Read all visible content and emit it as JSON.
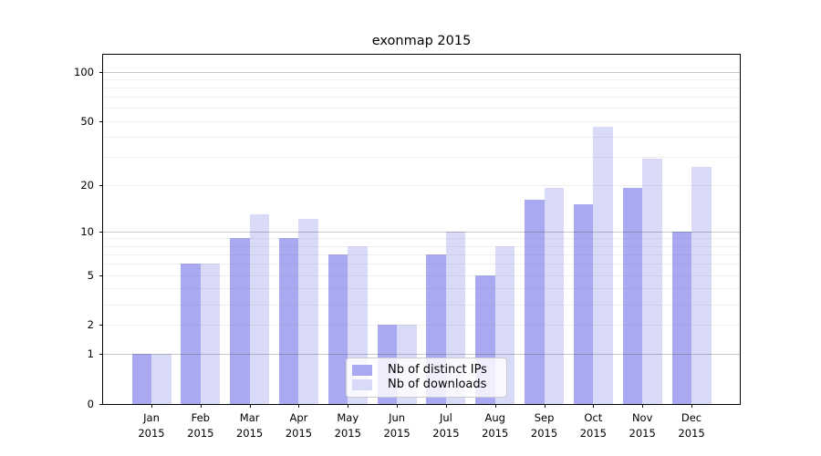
{
  "figure": {
    "title": "exonmap 2015"
  },
  "chart_data": {
    "type": "bar",
    "title": "exonmap 2015",
    "xlabel": "",
    "ylabel": "",
    "x_months": [
      "Jan",
      "Feb",
      "Mar",
      "Apr",
      "May",
      "Jun",
      "Jul",
      "Aug",
      "Sep",
      "Oct",
      "Nov",
      "Dec"
    ],
    "x_year": "2015",
    "series": [
      {
        "name": "Nb of distinct IPs",
        "color": "#a9a9f1",
        "values": [
          1,
          6,
          9,
          9,
          7,
          2,
          7,
          5,
          16,
          15,
          19,
          10
        ]
      },
      {
        "name": "Nb of downloads",
        "color": "#d9d9f8",
        "values": [
          1,
          6,
          13,
          12,
          8,
          2,
          10,
          8,
          19,
          46,
          29,
          26
        ]
      }
    ],
    "y_scale": "log10(1+y)",
    "y_ticks": [
      100,
      50,
      20,
      10,
      5,
      2,
      1,
      0
    ],
    "y_lim": [
      0,
      124
    ],
    "grid": "on",
    "grid_dark_values": [
      1,
      10,
      100
    ],
    "grid_light_values": [
      2,
      3,
      4,
      5,
      6,
      7,
      8,
      9,
      20,
      30,
      40,
      50,
      60,
      70,
      80,
      90
    ],
    "legend_position": "lower center, inside plot"
  },
  "colors": {
    "background": "#ffffff",
    "axis": "#000000",
    "series_ips": "#a9a9f1",
    "series_downloads": "#d9d9f8",
    "legend_border": "#cccccc"
  }
}
